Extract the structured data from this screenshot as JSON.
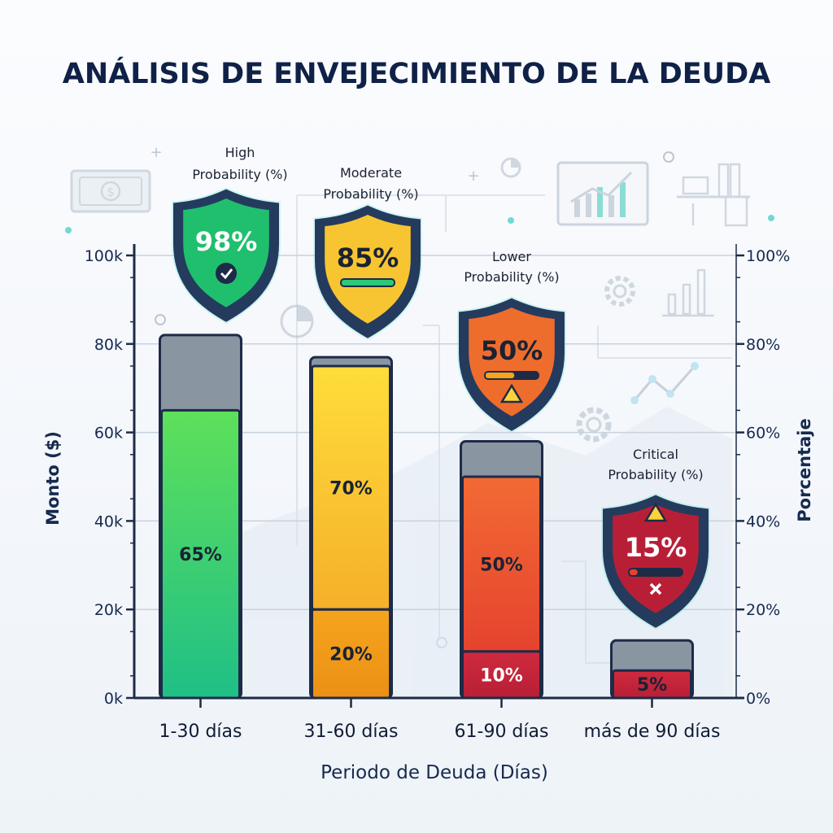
{
  "chart_data": {
    "type": "bar",
    "title": "ANÁLISIS DE ENVEJECIMIENTO DE LA DEUDA",
    "xlabel": "Periodo de Deuda (Días)",
    "ylabel": "Monto ($)",
    "y2label": "Porcentaje",
    "ylim": [
      0,
      100000
    ],
    "y2lim": [
      0,
      100
    ],
    "y_ticks": [
      "0k",
      "20k",
      "40k",
      "60k",
      "80k",
      "100k"
    ],
    "y2_ticks": [
      "0%",
      "20%",
      "40%",
      "60%",
      "80%",
      "100%"
    ],
    "categories": [
      "1-30 días",
      "31-60 días",
      "61-90 días",
      "más de 90 días"
    ],
    "totals": [
      82000,
      77000,
      58000,
      13000
    ],
    "segments": [
      [
        {
          "label": "65%",
          "top": 65000,
          "bottom": 0,
          "color": "#2fc77a"
        }
      ],
      [
        {
          "label": "70%",
          "top": 75000,
          "bottom": 20000,
          "color": "#f7c531"
        },
        {
          "label": "20%",
          "top": 20000,
          "bottom": 0,
          "color": "#f2a41f"
        }
      ],
      [
        {
          "label": "50%",
          "top": 50000,
          "bottom": 10500,
          "color": "#ee5a32"
        },
        {
          "label": "10%",
          "top": 10500,
          "bottom": 0,
          "color": "#c8243a"
        }
      ],
      [
        {
          "label": "5%",
          "top": 6200,
          "bottom": 0,
          "color": "#b81f36"
        }
      ]
    ],
    "probabilities": [
      {
        "title": "High Probability (%)",
        "value": "98%",
        "color": "#1fbf6e"
      },
      {
        "title": "Moderate Probability (%)",
        "value": "85%",
        "color": "#f5c22b"
      },
      {
        "title": "Lower Probability (%)",
        "value": "50%",
        "color": "#ee6d2d"
      },
      {
        "title": "Critical Probability (%)",
        "value": "15%",
        "color": "#b81f36"
      }
    ],
    "colors": {
      "axis": "#1d2b47",
      "grid": "#c7d2de",
      "cap": "#8a95a2",
      "text": "#0f2147"
    }
  }
}
